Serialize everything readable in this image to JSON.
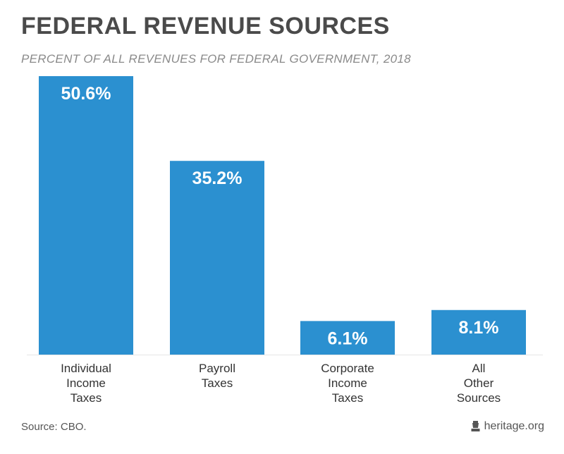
{
  "header": {
    "title": "FEDERAL REVENUE SOURCES",
    "subtitle": "PERCENT OF ALL REVENUES FOR FEDERAL GOVERNMENT, 2018"
  },
  "footer": {
    "source": "Source: CBO.",
    "brand": "heritage.org",
    "brand_icon": "bell-icon"
  },
  "colors": {
    "bar": "#2b90d0",
    "bar_label": "#ffffff",
    "axis": "#e6e6e6",
    "category_text": "#333333"
  },
  "chart_data": {
    "type": "bar",
    "title": "FEDERAL REVENUE SOURCES",
    "subtitle": "PERCENT OF ALL REVENUES FOR FEDERAL GOVERNMENT, 2018",
    "categories": [
      [
        "Individual",
        "Income",
        "Taxes"
      ],
      [
        "Payroll",
        "Taxes"
      ],
      [
        "Corporate",
        "Income",
        "Taxes"
      ],
      [
        "All",
        "Other",
        "Sources"
      ]
    ],
    "values": [
      50.6,
      35.2,
      6.1,
      8.1
    ],
    "data_labels": [
      "50.6%",
      "35.2%",
      "6.1%",
      "8.1%"
    ],
    "unit": "%",
    "ylim": [
      0,
      50.6
    ],
    "grid": false,
    "legend": "none"
  }
}
